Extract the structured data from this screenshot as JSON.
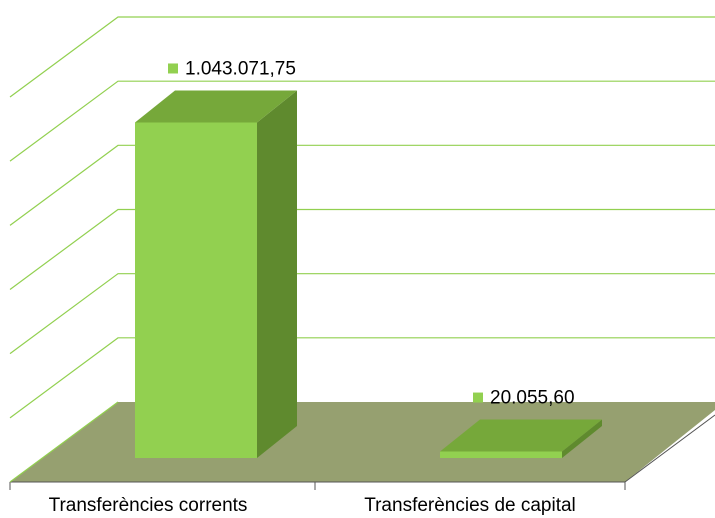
{
  "chart_data": {
    "type": "bar3d",
    "categories": [
      "Transferències corrents",
      "Transferències de capital"
    ],
    "values": [
      1043071.75,
      20055.6
    ],
    "value_labels": [
      "1.043.071,75",
      "20.055,60"
    ],
    "color": "#92d050",
    "ylim": [
      0,
      1200000
    ],
    "yticks": [
      0,
      200000,
      400000,
      600000,
      800000,
      1000000,
      1200000
    ],
    "grid": true
  }
}
